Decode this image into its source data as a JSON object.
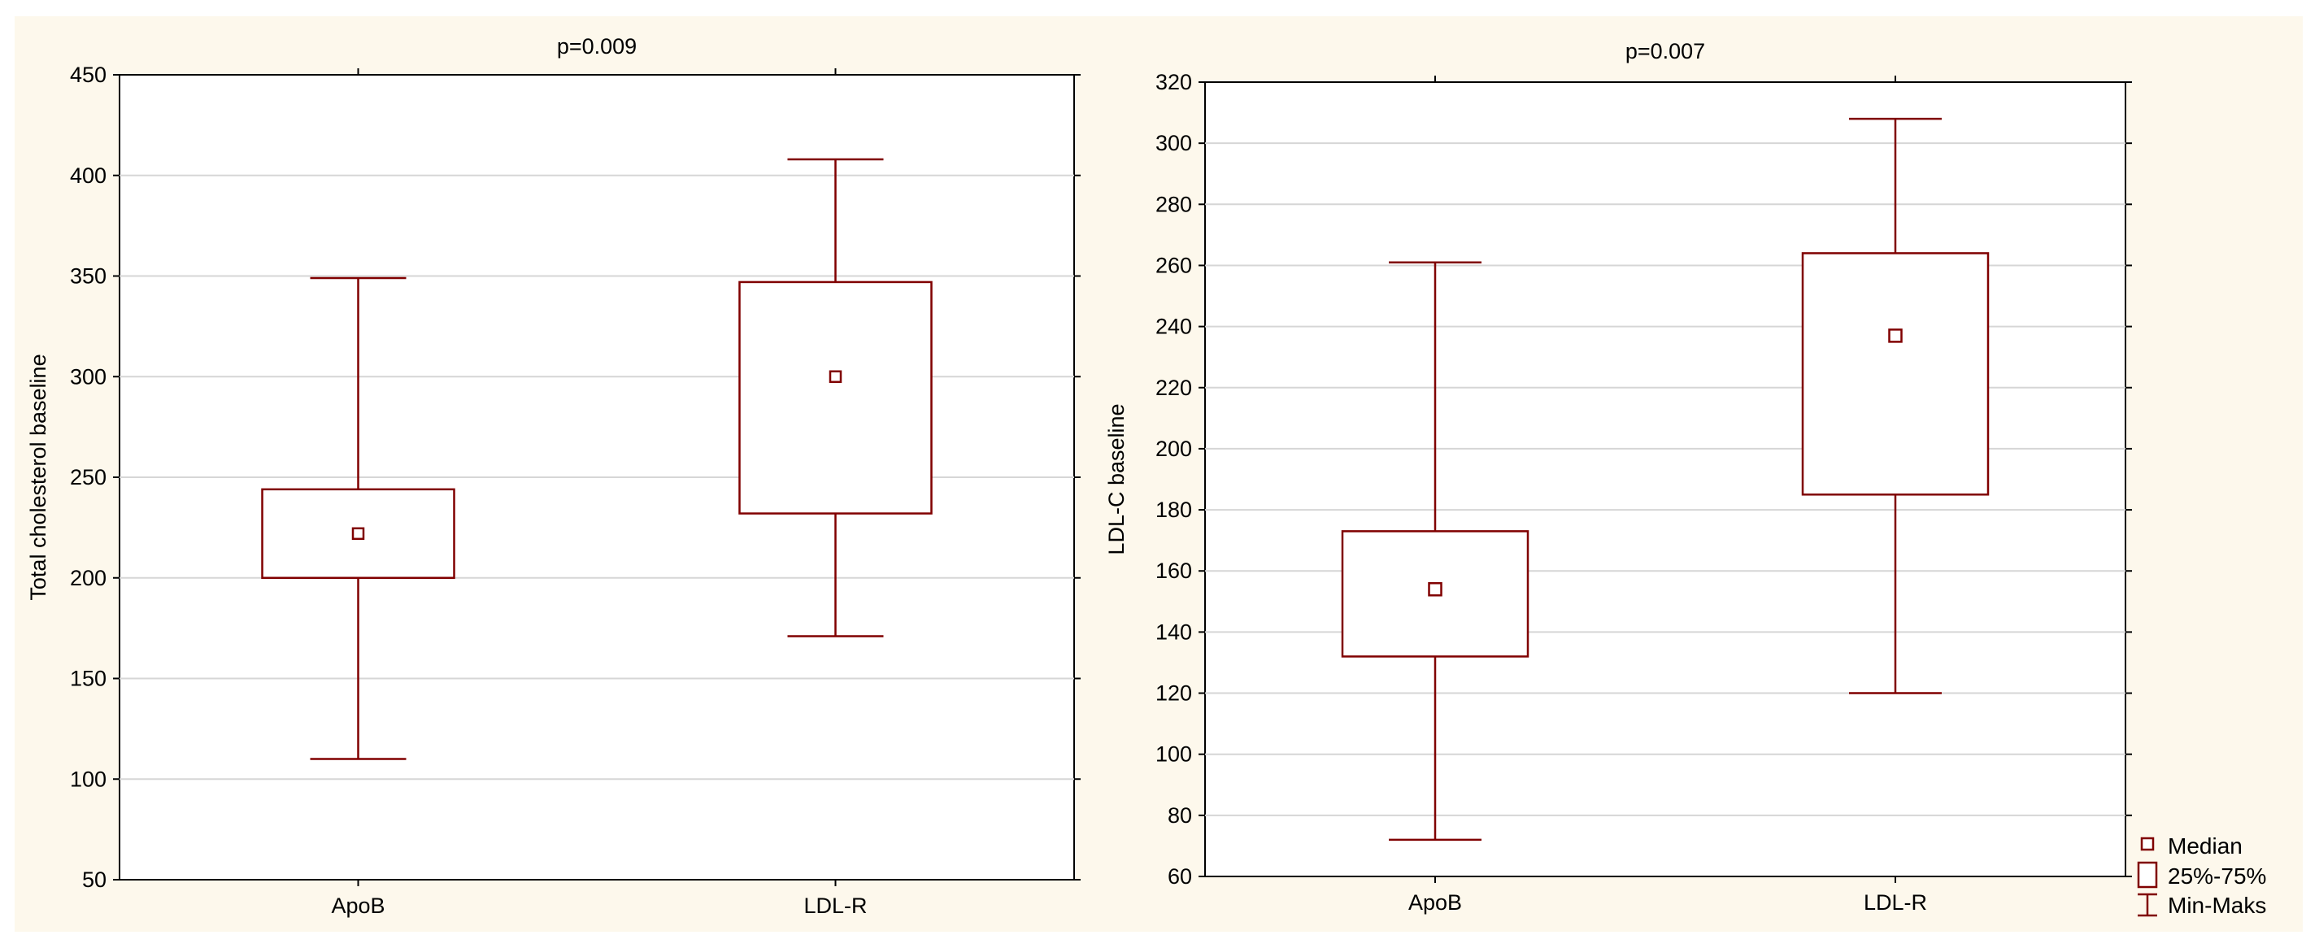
{
  "chart_data": [
    {
      "type": "boxplot",
      "title": "p=0.009",
      "xlabel": "",
      "ylabel": "Total cholesterol baseline",
      "ylim": [
        50,
        450
      ],
      "yticks": [
        50,
        100,
        150,
        200,
        250,
        300,
        350,
        400,
        450
      ],
      "grid": true,
      "categories": [
        "ApoB",
        "LDL-R"
      ],
      "boxes": [
        {
          "category": "ApoB",
          "min": 110,
          "q1": 200,
          "median": 222,
          "q3": 244,
          "max": 349
        },
        {
          "category": "LDL-R",
          "min": 171,
          "q1": 232,
          "median": 300,
          "q3": 347,
          "max": 408
        }
      ]
    },
    {
      "type": "boxplot",
      "title": "p=0.007",
      "xlabel": "",
      "ylabel": "LDL-C baseline",
      "ylim": [
        60,
        320
      ],
      "yticks": [
        60,
        80,
        100,
        120,
        140,
        160,
        180,
        200,
        220,
        240,
        260,
        280,
        300,
        320
      ],
      "grid": true,
      "categories": [
        "ApoB",
        "LDL-R"
      ],
      "boxes": [
        {
          "category": "ApoB",
          "min": 72,
          "q1": 132,
          "median": 154,
          "q3": 173,
          "max": 261
        },
        {
          "category": "LDL-R",
          "min": 120,
          "q1": 185,
          "median": 237,
          "q3": 264,
          "max": 308
        }
      ],
      "legend": {
        "position": "bottom-right",
        "items": [
          "Median",
          "25%-75%",
          "Min-Maks"
        ]
      }
    }
  ],
  "colors": {
    "mark": "#800000",
    "background": "#fdf8ec",
    "grid": "#d6d6d6"
  }
}
